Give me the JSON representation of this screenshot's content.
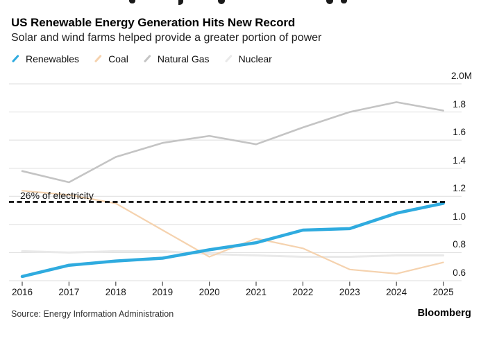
{
  "header": {
    "title": "US Renewable Energy Generation Hits New Record",
    "subtitle": "Solar and wind farms helped provide a greater portion of power"
  },
  "chart_data": {
    "type": "line",
    "x": [
      "2016",
      "2017",
      "2018",
      "2019",
      "2020",
      "2021",
      "2022",
      "2023",
      "2024",
      "2025"
    ],
    "y_ticks": [
      {
        "label": "2.0M",
        "value": 2.0
      },
      {
        "label": "1.8",
        "value": 1.8
      },
      {
        "label": "1.6",
        "value": 1.6
      },
      {
        "label": "1.4",
        "value": 1.4
      },
      {
        "label": "1.2",
        "value": 1.2
      },
      {
        "label": "1.0",
        "value": 1.0
      },
      {
        "label": "0.8",
        "value": 0.8
      },
      {
        "label": "0.6",
        "value": 0.6
      }
    ],
    "ylim": [
      0.6,
      2.0
    ],
    "grid": "horizontal",
    "legend_position": "top-left",
    "series": [
      {
        "name": "Renewables",
        "color": "#2fabdf",
        "values": [
          0.63,
          0.71,
          0.74,
          0.76,
          0.82,
          0.87,
          0.96,
          0.97,
          1.08,
          1.15
        ]
      },
      {
        "name": "Coal",
        "color": "#f5d2ae",
        "values": [
          1.24,
          1.21,
          1.15,
          0.96,
          0.77,
          0.9,
          0.83,
          0.68,
          0.65,
          0.73
        ]
      },
      {
        "name": "Natural Gas",
        "color": "#c4c4c4",
        "values": [
          1.38,
          1.3,
          1.48,
          1.58,
          1.63,
          1.57,
          1.69,
          1.8,
          1.87,
          1.81
        ]
      },
      {
        "name": "Nuclear",
        "color": "#e9e9e9",
        "values": [
          0.81,
          0.8,
          0.81,
          0.81,
          0.79,
          0.78,
          0.77,
          0.77,
          0.78,
          0.78
        ]
      }
    ],
    "annotation": {
      "label": "26% of electricity",
      "value": 1.16,
      "line_style": "dashed",
      "line_color": "#000000"
    }
  },
  "footer": {
    "source": "Source: Energy Information Administration",
    "brand": "Bloomberg"
  }
}
